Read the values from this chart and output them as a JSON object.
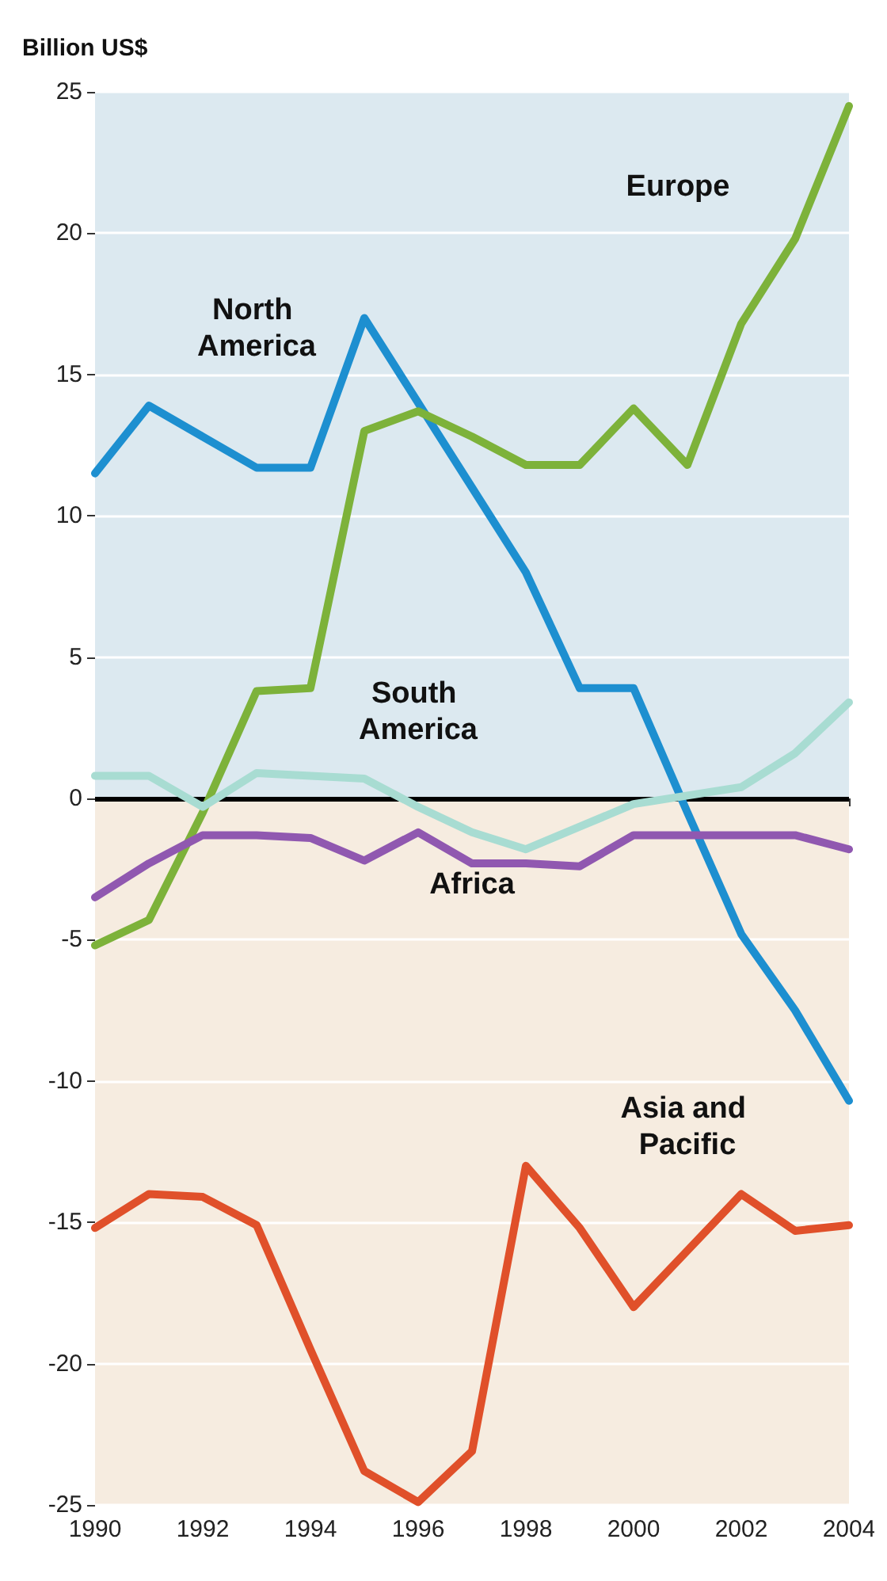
{
  "chart_data": {
    "type": "line",
    "ylabel": "Billion US$",
    "x": [
      1990,
      1991,
      1992,
      1993,
      1994,
      1995,
      1996,
      1997,
      1998,
      1999,
      2000,
      2001,
      2002,
      2003,
      2004
    ],
    "xlim": [
      1990,
      2004
    ],
    "xticks": [
      1990,
      1992,
      1994,
      1996,
      1998,
      2000,
      2002,
      2004
    ],
    "ylim": [
      -25,
      25
    ],
    "yticks": [
      -25,
      -20,
      -15,
      -10,
      -5,
      0,
      5,
      10,
      15,
      20,
      25
    ],
    "grid": "y",
    "legend": false,
    "marker": "none",
    "line_style": "solid",
    "bands": [
      {
        "axis": "y",
        "from": 0,
        "to": 25,
        "color": "#dce9f0"
      },
      {
        "axis": "y",
        "from": -25,
        "to": 0,
        "color": "#f6ece0"
      }
    ],
    "ref_lines": [
      {
        "axis": "y",
        "value": 0,
        "color": "#000000"
      }
    ],
    "series": [
      {
        "name": "North America",
        "color": "#1d8fd0",
        "values": [
          11.5,
          13.9,
          12.8,
          11.7,
          11.7,
          17,
          14,
          11,
          8,
          3.9,
          3.9,
          -0.5,
          -4.8,
          -7.5,
          -10.7
        ]
      },
      {
        "name": "Europe",
        "color": "#7db23a",
        "values": [
          -5.2,
          -4.3,
          -0.5,
          3.8,
          3.9,
          13,
          13.7,
          12.8,
          11.8,
          11.8,
          13.8,
          11.8,
          16.8,
          19.8,
          24.5
        ]
      },
      {
        "name": "South America",
        "color": "#a8dcd2",
        "values": [
          0.8,
          0.8,
          -0.3,
          0.9,
          0.8,
          0.7,
          -0.3,
          -1.2,
          -1.8,
          -1,
          -0.2,
          0.1,
          0.4,
          1.6,
          3.4
        ]
      },
      {
        "name": "Africa",
        "color": "#9058b0",
        "values": [
          -3.5,
          -2.3,
          -1.3,
          -1.3,
          -1.4,
          -2.2,
          -1.2,
          -2.3,
          -2.3,
          -2.4,
          -1.3,
          -1.3,
          -1.3,
          -1.3,
          -1.8
        ]
      },
      {
        "name": "Asia and Pacific",
        "color": "#e0502a",
        "values": [
          -15.2,
          -14,
          -14.1,
          -15.1,
          -19.5,
          -23.8,
          -24.9,
          -23.1,
          -13,
          -15.2,
          -18,
          -16,
          -14,
          -15.3,
          -15.1
        ]
      }
    ]
  }
}
